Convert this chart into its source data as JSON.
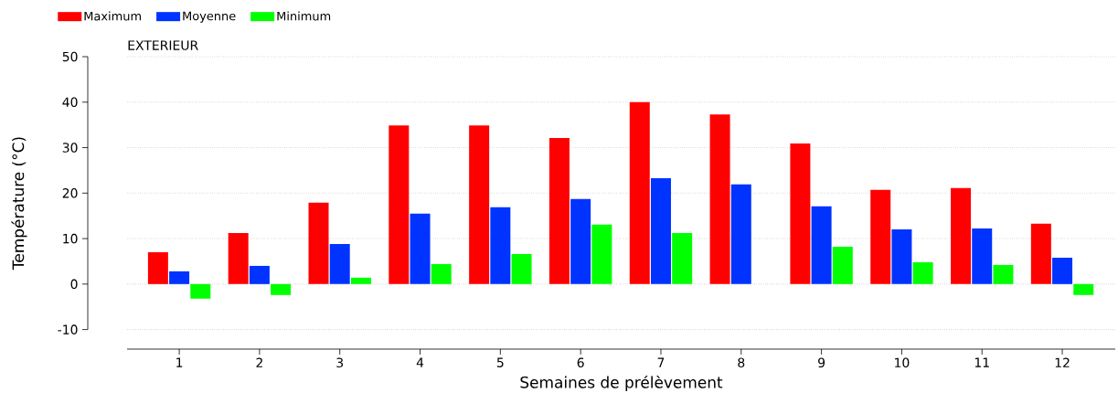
{
  "chart_data": {
    "type": "bar",
    "title": "EXTERIEUR",
    "xlabel": "Semaines de prélèvement",
    "ylabel": "Température (°C)",
    "categories": [
      "1",
      "2",
      "3",
      "4",
      "5",
      "6",
      "7",
      "8",
      "9",
      "10",
      "11",
      "12"
    ],
    "series": [
      {
        "name": "Maximum",
        "color": "#ff0000",
        "values": [
          7.0,
          11.2,
          17.9,
          34.9,
          34.9,
          32.1,
          40.0,
          37.3,
          30.9,
          20.7,
          21.1,
          13.3
        ]
      },
      {
        "name": "Moyenne",
        "color": "#0033ff",
        "values": [
          2.8,
          4.0,
          8.8,
          15.5,
          16.9,
          18.7,
          23.3,
          21.9,
          17.1,
          12.0,
          12.2,
          5.8
        ]
      },
      {
        "name": "Minimum",
        "color": "#00ff00",
        "values": [
          -3.2,
          -2.4,
          1.4,
          4.4,
          6.6,
          13.1,
          11.2,
          null,
          8.2,
          4.8,
          4.2,
          -2.4
        ]
      }
    ],
    "ylim": [
      -14.3,
      50
    ],
    "yticks": [
      -10,
      0,
      10,
      20,
      30,
      40,
      50
    ],
    "grid": "y",
    "legend": "top left"
  }
}
